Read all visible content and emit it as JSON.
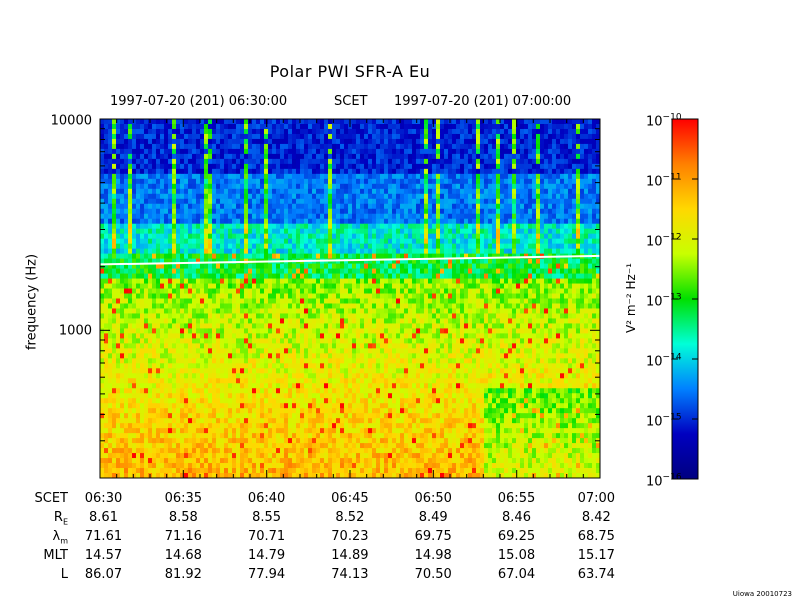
{
  "chart_data": {
    "type": "heatmap",
    "title": "Polar PWI SFR-A Eu",
    "start_label": "1997-07-20 (201) 06:30:00",
    "scet_label": "SCET",
    "end_label": "1997-07-20 (201) 07:00:00",
    "ylabel": "frequency (Hz)",
    "yscale": "log",
    "ylim": [
      200,
      10000
    ],
    "yticks": [
      {
        "value": 10000,
        "label": "10000"
      },
      {
        "value": 1000,
        "label": "1000"
      }
    ],
    "xlim_minutes": [
      0,
      30
    ],
    "colorbar": {
      "label_base": "V",
      "label_text": "V² m⁻² Hz⁻¹",
      "scale": "log",
      "range_exponents": [
        -16,
        -10
      ],
      "tick_base": "10",
      "tick_exponents": [
        "−10",
        "−11",
        "−12",
        "−13",
        "−14",
        "−15",
        "−16"
      ],
      "colors": [
        "#ff0000",
        "#ff8000",
        "#ffd800",
        "#c8ff00",
        "#00e000",
        "#00ffd8",
        "#0080ff",
        "#0000c0",
        "#000080"
      ]
    },
    "white_trace": {
      "label": "",
      "start_freq_hz": 2050,
      "end_freq_hz": 2250
    },
    "orbit_table": {
      "rows": [
        {
          "name": "SCET",
          "values": [
            "06:30",
            "06:35",
            "06:40",
            "06:45",
            "06:50",
            "06:55",
            "07:00"
          ]
        },
        {
          "name": "R",
          "sub": "E",
          "values": [
            "8.61",
            "8.58",
            "8.55",
            "8.52",
            "8.49",
            "8.46",
            "8.42"
          ]
        },
        {
          "name": "λ",
          "sub": "m",
          "values": [
            "71.61",
            "71.16",
            "70.71",
            "70.23",
            "69.75",
            "69.25",
            "68.75"
          ]
        },
        {
          "name": "MLT",
          "values": [
            "14.57",
            "14.68",
            "14.79",
            "14.89",
            "14.98",
            "15.08",
            "15.17"
          ]
        },
        {
          "name": "L",
          "values": [
            "86.07",
            "81.92",
            "77.94",
            "74.13",
            "70.50",
            "67.04",
            "63.74"
          ]
        }
      ]
    }
  },
  "footer": "Uiowa 20010723"
}
